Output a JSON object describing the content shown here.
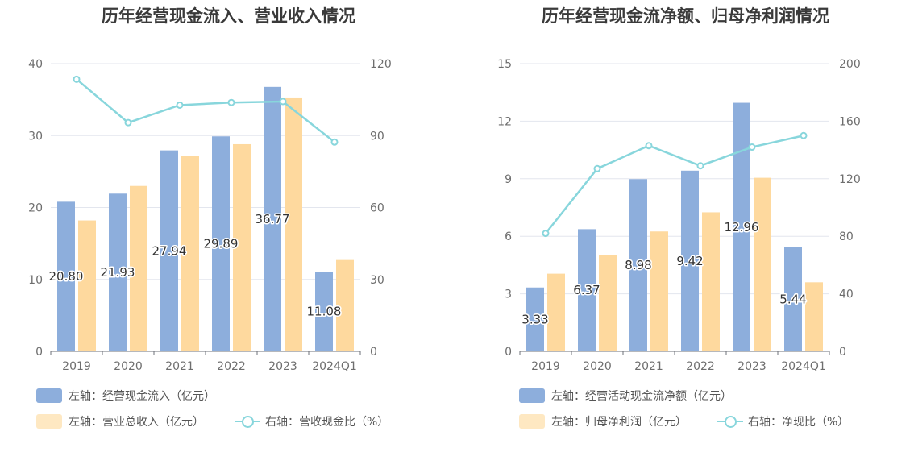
{
  "chart_data": [
    {
      "type": "bar",
      "title": "历年经营现金流入、营业收入情况",
      "categories": [
        "2019",
        "2020",
        "2021",
        "2022",
        "2023",
        "2024Q1"
      ],
      "left_axis": {
        "ylim": [
          0,
          40
        ],
        "ticks": [
          "0",
          "10",
          "20",
          "30",
          "40"
        ]
      },
      "right_axis": {
        "ylim": [
          0,
          120
        ],
        "ticks": [
          "0",
          "30",
          "60",
          "90",
          "120"
        ]
      },
      "series": [
        {
          "name": "左轴：经营现金流入（亿元）",
          "type": "bar",
          "axis": "left",
          "color": "#8daedc",
          "values": [
            20.8,
            21.93,
            27.94,
            29.89,
            36.77,
            11.08
          ],
          "labels": [
            "20.80",
            "21.93",
            "27.94",
            "29.89",
            "36.77",
            "11.08"
          ]
        },
        {
          "name": "左轴：营业总收入（亿元）",
          "type": "bar",
          "axis": "left",
          "color": "#fed99e",
          "values": [
            18.2,
            23.0,
            27.2,
            28.8,
            35.3,
            12.7
          ]
        },
        {
          "name": "右轴：营收现金比（%）",
          "type": "line",
          "axis": "right",
          "color": "#88d6dc",
          "values": [
            113.5,
            95.4,
            102.7,
            103.8,
            104.2,
            87.3
          ]
        }
      ],
      "grid": true,
      "legend_position": "bottom-left"
    },
    {
      "type": "bar",
      "title": "历年经营现金流净额、归母净利润情况",
      "categories": [
        "2019",
        "2020",
        "2021",
        "2022",
        "2023",
        "2024Q1"
      ],
      "left_axis": {
        "ylim": [
          0,
          15
        ],
        "ticks": [
          "0",
          "3",
          "6",
          "9",
          "12",
          "15"
        ]
      },
      "right_axis": {
        "ylim": [
          0,
          200
        ],
        "ticks": [
          "0",
          "40",
          "80",
          "120",
          "160",
          "200"
        ]
      },
      "series": [
        {
          "name": "左轴：经营活动现金流净额（亿元）",
          "type": "bar",
          "axis": "left",
          "color": "#8daedc",
          "values": [
            3.33,
            6.37,
            8.98,
            9.42,
            12.96,
            5.44
          ],
          "labels": [
            "3.33",
            "6.37",
            "8.98",
            "9.42",
            "12.96",
            "5.44"
          ]
        },
        {
          "name": "左轴：归母净利润（亿元）",
          "type": "bar",
          "axis": "left",
          "color": "#fed99e",
          "values": [
            4.05,
            5.0,
            6.25,
            7.25,
            9.05,
            3.6
          ]
        },
        {
          "name": "右轴：净现比（%）",
          "type": "line",
          "axis": "right",
          "color": "#88d6dc",
          "values": [
            82,
            127,
            143,
            129,
            142,
            150
          ]
        }
      ],
      "grid": true,
      "legend_position": "bottom-left"
    }
  ]
}
